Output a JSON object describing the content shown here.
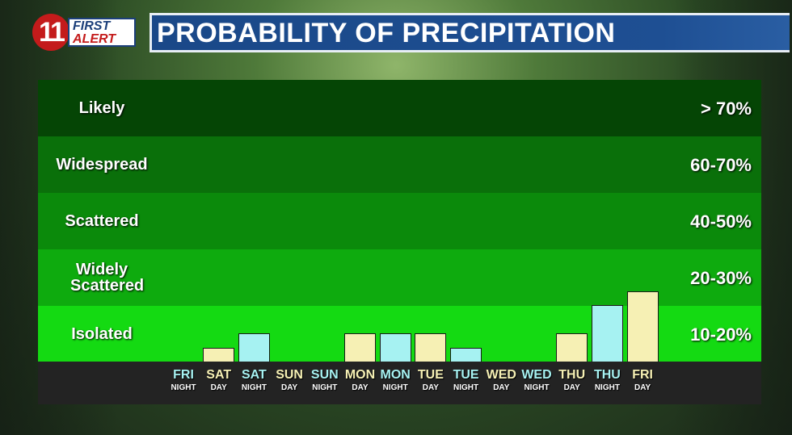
{
  "logo": {
    "channel": "11",
    "line1": "FIRST",
    "line2": "ALERT"
  },
  "title": "PROBABILITY OF PRECIPITATION",
  "chart_data": {
    "type": "bar",
    "title": "PROBABILITY OF PRECIPITATION",
    "bands": [
      {
        "label": "Likely",
        "range": "> 70%",
        "color": "#054505"
      },
      {
        "label": "Widespread",
        "range": "60-70%",
        "color": "#0a700a"
      },
      {
        "label": "Scattered",
        "range": "40-50%",
        "color": "#0b8a0b"
      },
      {
        "label": "Widely Scattered",
        "range": "20-30%",
        "color": "#0eab0e"
      },
      {
        "label": "Isolated",
        "range": "10-20%",
        "color": "#14da12"
      }
    ],
    "categories": [
      {
        "day": "FRI",
        "period": "NIGHT"
      },
      {
        "day": "SAT",
        "period": "DAY"
      },
      {
        "day": "SAT",
        "period": "NIGHT"
      },
      {
        "day": "SUN",
        "period": "DAY"
      },
      {
        "day": "SUN",
        "period": "NIGHT"
      },
      {
        "day": "MON",
        "period": "DAY"
      },
      {
        "day": "MON",
        "period": "NIGHT"
      },
      {
        "day": "TUE",
        "period": "DAY"
      },
      {
        "day": "TUE",
        "period": "NIGHT"
      },
      {
        "day": "WED",
        "period": "DAY"
      },
      {
        "day": "WED",
        "period": "NIGHT"
      },
      {
        "day": "THU",
        "period": "DAY"
      },
      {
        "day": "THU",
        "period": "NIGHT"
      },
      {
        "day": "FRI",
        "period": "DAY"
      }
    ],
    "values": [
      0,
      5,
      10,
      0,
      0,
      10,
      10,
      10,
      5,
      0,
      0,
      10,
      20,
      25
    ],
    "colors": {
      "DAY": "#f6f0b4",
      "NIGHT": "#a6f2f2"
    }
  }
}
